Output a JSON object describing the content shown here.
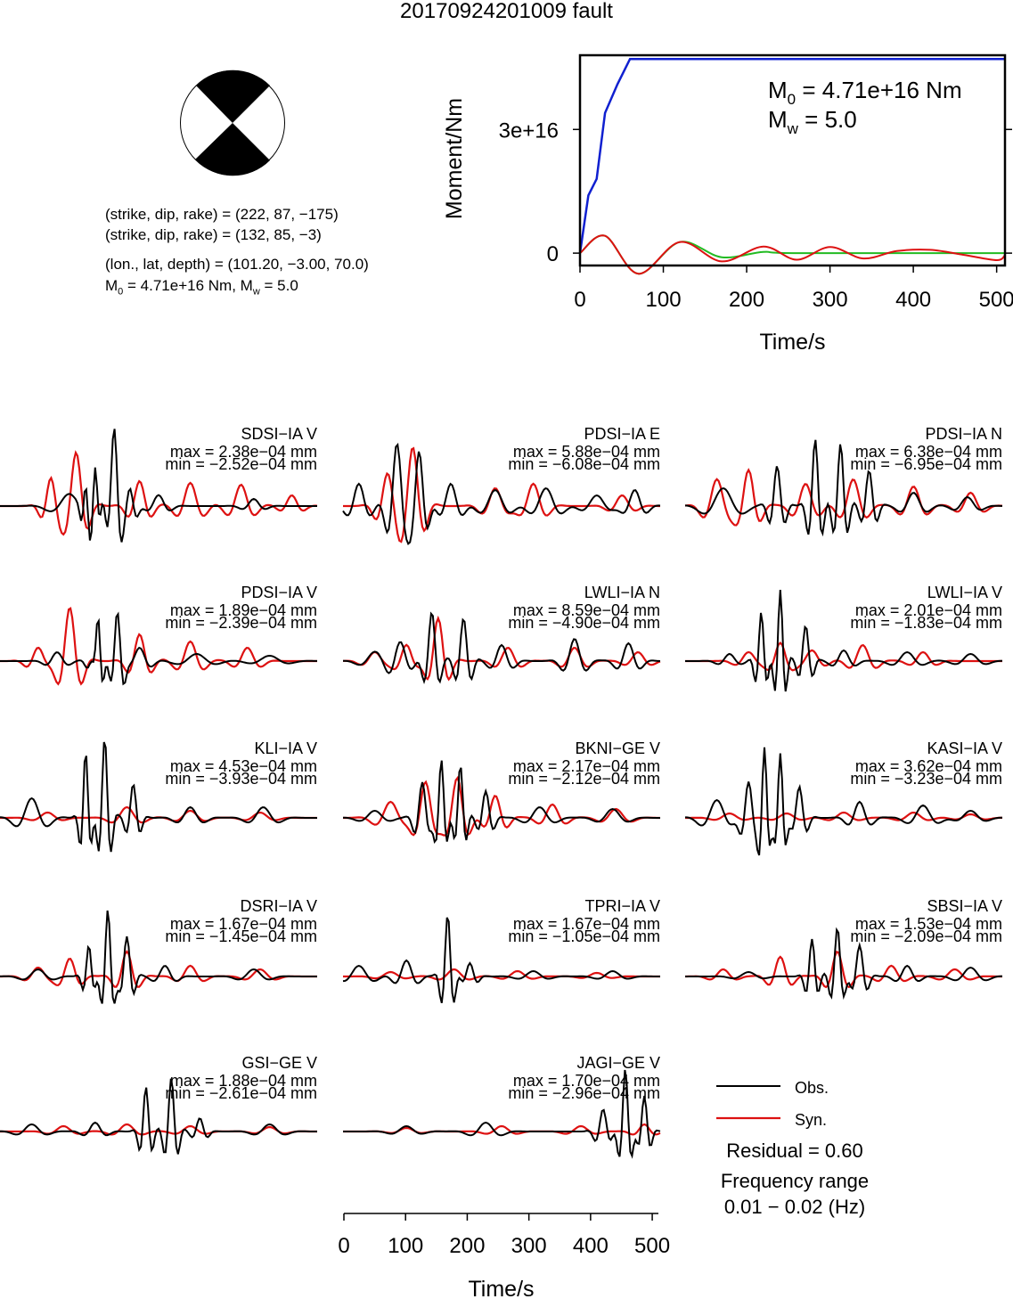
{
  "title": "20170924201009 fault",
  "source_params": {
    "plane1": "(strike, dip, rake) = (222, 87, −175)",
    "plane2": "(strike, dip, rake) = (132, 85, −3)",
    "location": "(lon., lat, depth) = (101.20, −3.00, 70.0)",
    "m0_prefix": "M",
    "m0_sub": "0",
    "m0_rest": " = 4.71e+16 Nm, M",
    "mw_sub": "w",
    "mw_rest": " = 5.0"
  },
  "colors": {
    "observed": "#000000",
    "synthetic": "#dd1111",
    "moment": "#1020d0",
    "moment_rate_green": "#22bb22"
  },
  "chart_data": [
    {
      "type": "line",
      "name": "moment-function",
      "xlabel": "Time/s",
      "ylabel": "Moment/Nm",
      "xlim": [
        0,
        510
      ],
      "ylim": [
        -3000000000000000.0,
        4.8e+16
      ],
      "xticks": [
        "0",
        "100",
        "200",
        "300",
        "400",
        "500"
      ],
      "yticks": [
        "0",
        "3e+16"
      ],
      "annotation": {
        "m0_prefix": "M",
        "m0_sub": "0",
        "m0_rest": " = 4.71e+16 Nm",
        "mw_prefix": "M",
        "mw_sub": "w",
        "mw_rest": " = 5.0"
      },
      "series": [
        {
          "key": "moment",
          "x": [
            0,
            10,
            20,
            30,
            45,
            60,
            510
          ],
          "y": [
            0,
            1.4e+16,
            1.8e+16,
            3.4e+16,
            4.1e+16,
            4.71e+16,
            4.71e+16
          ]
        },
        {
          "key": "rate_green",
          "x": [
            0,
            30,
            70,
            120,
            170,
            220,
            260,
            510
          ],
          "y": [
            0,
            4200000000000000.0,
            -5000000000000000.0,
            2700000000000000.0,
            -1000000000000000.0,
            300000000000000.0,
            0,
            0
          ]
        },
        {
          "key": "rate_red",
          "x": [
            0,
            30,
            70,
            120,
            170,
            220,
            260,
            300,
            340,
            380,
            420,
            460,
            500,
            510
          ],
          "y": [
            0,
            4200000000000000.0,
            -5000000000000000.0,
            2700000000000000.0,
            -2000000000000000.0,
            1600000000000000.0,
            -1600000000000000.0,
            1500000000000000.0,
            -1300000000000000.0,
            500000000000000.0,
            800000000000000.0,
            -400000000000000.0,
            -1700000000000000.0,
            -500000000000000.0
          ]
        }
      ]
    },
    {
      "type": "line",
      "name": "waveform-panels",
      "xlabel": "Time/s",
      "xlim": [
        0,
        510
      ],
      "xticks": [
        "0",
        "100",
        "200",
        "300",
        "400",
        "500"
      ],
      "legend": {
        "observed": "Obs.",
        "synthetic": "Syn."
      },
      "residual": "Residual = 0.60",
      "frequency_label": "Frequency range",
      "frequency_value": "0.01 − 0.02 (Hz)",
      "stations": [
        {
          "name": "SDSI−IA V",
          "max": "max = 2.38e−04 mm",
          "min": "min = −2.52e−04 mm"
        },
        {
          "name": "PDSI−IA E",
          "max": "max = 5.88e−04 mm",
          "min": "min = −6.08e−04 mm"
        },
        {
          "name": "PDSI−IA N",
          "max": "max = 6.38e−04 mm",
          "min": "min = −6.95e−04 mm"
        },
        {
          "name": "PDSI−IA V",
          "max": "max = 1.89e−04 mm",
          "min": "min = −2.39e−04 mm"
        },
        {
          "name": "LWLI−IA N",
          "max": "max = 8.59e−04 mm",
          "min": "min = −4.90e−04 mm"
        },
        {
          "name": "LWLI−IA V",
          "max": "max = 2.01e−04 mm",
          "min": "min = −1.83e−04 mm"
        },
        {
          "name": "KLI−IA V",
          "max": "max = 4.53e−04 mm",
          "min": "min = −3.93e−04 mm"
        },
        {
          "name": "BKNI−GE V",
          "max": "max = 2.17e−04 mm",
          "min": "min = −2.12e−04 mm"
        },
        {
          "name": "KASI−IA V",
          "max": "max = 3.62e−04 mm",
          "min": "min = −3.23e−04 mm"
        },
        {
          "name": "DSRI−IA V",
          "max": "max = 1.67e−04 mm",
          "min": "min = −1.45e−04 mm"
        },
        {
          "name": "TPRI−IA V",
          "max": "max = 1.67e−04 mm",
          "min": "min = −1.05e−04 mm"
        },
        {
          "name": "SBSI−IA V",
          "max": "max = 1.53e−04 mm",
          "min": "min = −2.09e−04 mm"
        },
        {
          "name": "GSI−GE V",
          "max": "max = 1.88e−04 mm",
          "min": "min = −2.61e−04 mm"
        },
        {
          "name": "JAGI−GE V",
          "max": "max = 1.70e−04 mm",
          "min": "min = −2.96e−04 mm"
        }
      ]
    }
  ]
}
